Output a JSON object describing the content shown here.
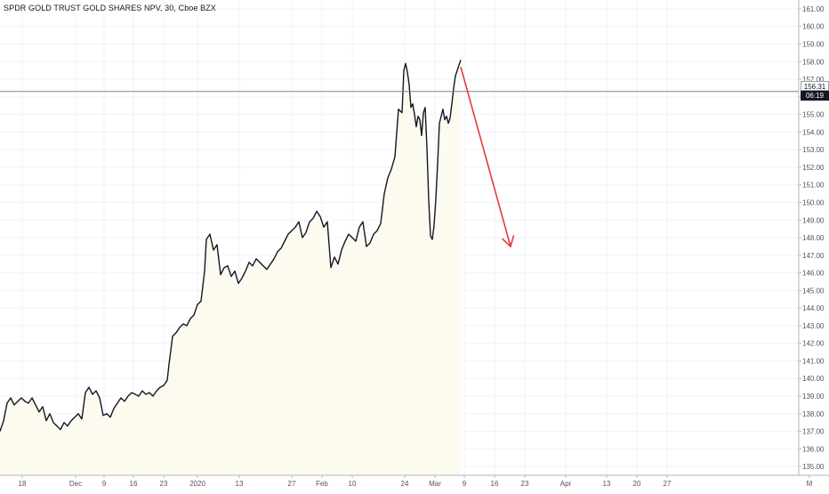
{
  "title": "SPDR GOLD TRUST GOLD SHARES NPV, 30, Cboe BZX",
  "colors": {
    "price_line": "#131722",
    "area_fill": "#fdfaf0",
    "arrow": "#e53935",
    "grid": "#f0f3fa",
    "last_price_line": "#758696"
  },
  "price_tags": {
    "last_price": "156.31",
    "countdown": "06:19"
  },
  "chart_data": {
    "type": "line",
    "title": "SPDR GOLD TRUST GOLD SHARES NPV, 30, Cboe BZX",
    "xlabel": "",
    "ylabel": "",
    "ylim": [
      134.5,
      161.2
    ],
    "y_ticks": [
      135,
      136,
      137,
      138,
      139,
      140,
      141,
      142,
      143,
      144,
      145,
      146,
      147,
      148,
      149,
      150,
      151,
      152,
      153,
      154,
      155,
      156,
      157,
      158,
      159,
      160,
      161
    ],
    "y_tick_labels": [
      "135.00",
      "136.00",
      "137.00",
      "138.00",
      "139.00",
      "140.00",
      "141.00",
      "142.00",
      "143.00",
      "144.00",
      "145.00",
      "146.00",
      "147.00",
      "148.00",
      "149.00",
      "150.00",
      "151.00",
      "152.00",
      "153.00",
      "154.00",
      "155.00",
      "156.00",
      "157.00",
      "158.00",
      "159.00",
      "160.00",
      "161.00"
    ],
    "x_domain": [
      0,
      932
    ],
    "x_ticks": [
      {
        "x": 25,
        "label": "18"
      },
      {
        "x": 85,
        "label": "Dec"
      },
      {
        "x": 117,
        "label": "9"
      },
      {
        "x": 150,
        "label": "16"
      },
      {
        "x": 184,
        "label": "23"
      },
      {
        "x": 222,
        "label": "2020"
      },
      {
        "x": 269,
        "label": "13"
      },
      {
        "x": 328,
        "label": "27"
      },
      {
        "x": 362,
        "label": "Feb"
      },
      {
        "x": 396,
        "label": "10"
      },
      {
        "x": 455,
        "label": "24"
      },
      {
        "x": 489,
        "label": "Mar"
      },
      {
        "x": 522,
        "label": "9"
      },
      {
        "x": 556,
        "label": "16"
      },
      {
        "x": 590,
        "label": "23"
      },
      {
        "x": 636,
        "label": "Apr"
      },
      {
        "x": 682,
        "label": "13"
      },
      {
        "x": 716,
        "label": "20"
      },
      {
        "x": 750,
        "label": "27"
      },
      {
        "x": 910,
        "label": "M"
      }
    ],
    "series": [
      {
        "x": [
          0,
          4,
          8,
          12,
          16,
          20,
          24,
          28,
          32,
          36,
          40,
          44,
          48,
          52,
          56,
          60,
          64,
          68,
          72,
          76,
          80,
          84,
          88,
          92,
          96,
          100,
          104,
          108,
          112,
          116,
          120,
          124,
          128,
          132,
          136,
          140,
          144,
          148,
          152,
          156,
          160,
          164,
          168,
          172,
          176,
          180,
          184,
          188,
          190,
          194,
          198,
          202,
          206,
          210,
          214,
          218,
          222,
          226,
          230,
          232,
          236,
          240,
          244,
          248,
          252,
          256,
          260,
          264,
          268,
          272,
          276,
          280,
          284,
          288,
          292,
          296,
          300,
          304,
          308,
          312,
          316,
          320,
          324,
          328,
          332,
          336,
          340,
          344,
          348,
          352,
          356,
          360,
          364,
          368,
          372,
          376,
          380,
          384,
          388,
          392,
          396,
          400,
          404,
          408,
          412,
          416,
          420,
          424,
          428,
          432,
          436,
          440,
          444,
          448,
          452,
          454,
          456,
          458,
          460,
          462,
          464,
          466,
          468,
          470,
          472,
          474,
          476,
          478,
          480,
          482,
          484,
          486,
          488,
          490,
          492,
          494,
          496,
          498,
          500,
          502,
          504,
          506,
          508,
          510,
          512,
          514,
          516,
          518
        ],
        "y": [
          137.0,
          137.6,
          138.6,
          138.9,
          138.5,
          138.7,
          138.9,
          138.7,
          138.6,
          138.9,
          138.5,
          138.1,
          138.4,
          137.6,
          138.0,
          137.5,
          137.3,
          137.1,
          137.5,
          137.3,
          137.6,
          137.8,
          138.0,
          137.7,
          139.2,
          139.5,
          139.1,
          139.3,
          138.9,
          137.9,
          138.0,
          137.8,
          138.3,
          138.6,
          138.9,
          138.7,
          139.0,
          139.2,
          139.1,
          139.0,
          139.3,
          139.1,
          139.2,
          139.0,
          139.3,
          139.5,
          139.6,
          139.9,
          140.8,
          142.4,
          142.6,
          142.9,
          143.1,
          143.0,
          143.4,
          143.6,
          144.2,
          144.4,
          146.1,
          147.9,
          148.2,
          147.3,
          147.6,
          145.9,
          146.3,
          146.4,
          145.8,
          146.1,
          145.4,
          145.7,
          146.1,
          146.6,
          146.4,
          146.8,
          146.6,
          146.4,
          146.2,
          146.5,
          146.8,
          147.2,
          147.4,
          147.8,
          148.2,
          148.4,
          148.6,
          148.9,
          148.0,
          148.3,
          148.9,
          149.1,
          149.5,
          149.2,
          148.6,
          148.9,
          146.3,
          146.9,
          146.5,
          147.3,
          147.8,
          148.2,
          148.0,
          147.8,
          148.6,
          148.9,
          147.5,
          147.7,
          148.2,
          148.4,
          148.8,
          150.5,
          151.4,
          151.9,
          152.6,
          155.3,
          155.1,
          157.5,
          157.9,
          157.4,
          156.7,
          155.4,
          155.6,
          155.0,
          154.3,
          154.9,
          154.7,
          153.8,
          155.1,
          155.4,
          153.1,
          150.1,
          148.1,
          147.9,
          148.7,
          150.2,
          152.2,
          154.5,
          154.9,
          155.3,
          154.7,
          154.9,
          154.5,
          154.8,
          155.6,
          156.5,
          157.2,
          157.5,
          157.8,
          158.1
        ]
      }
    ],
    "arrow": {
      "from": {
        "x": 518,
        "y": 157.7
      },
      "to": {
        "x": 574,
        "y": 147.5
      }
    },
    "last_price_line": 156.31,
    "grid": true,
    "legend": "none"
  }
}
